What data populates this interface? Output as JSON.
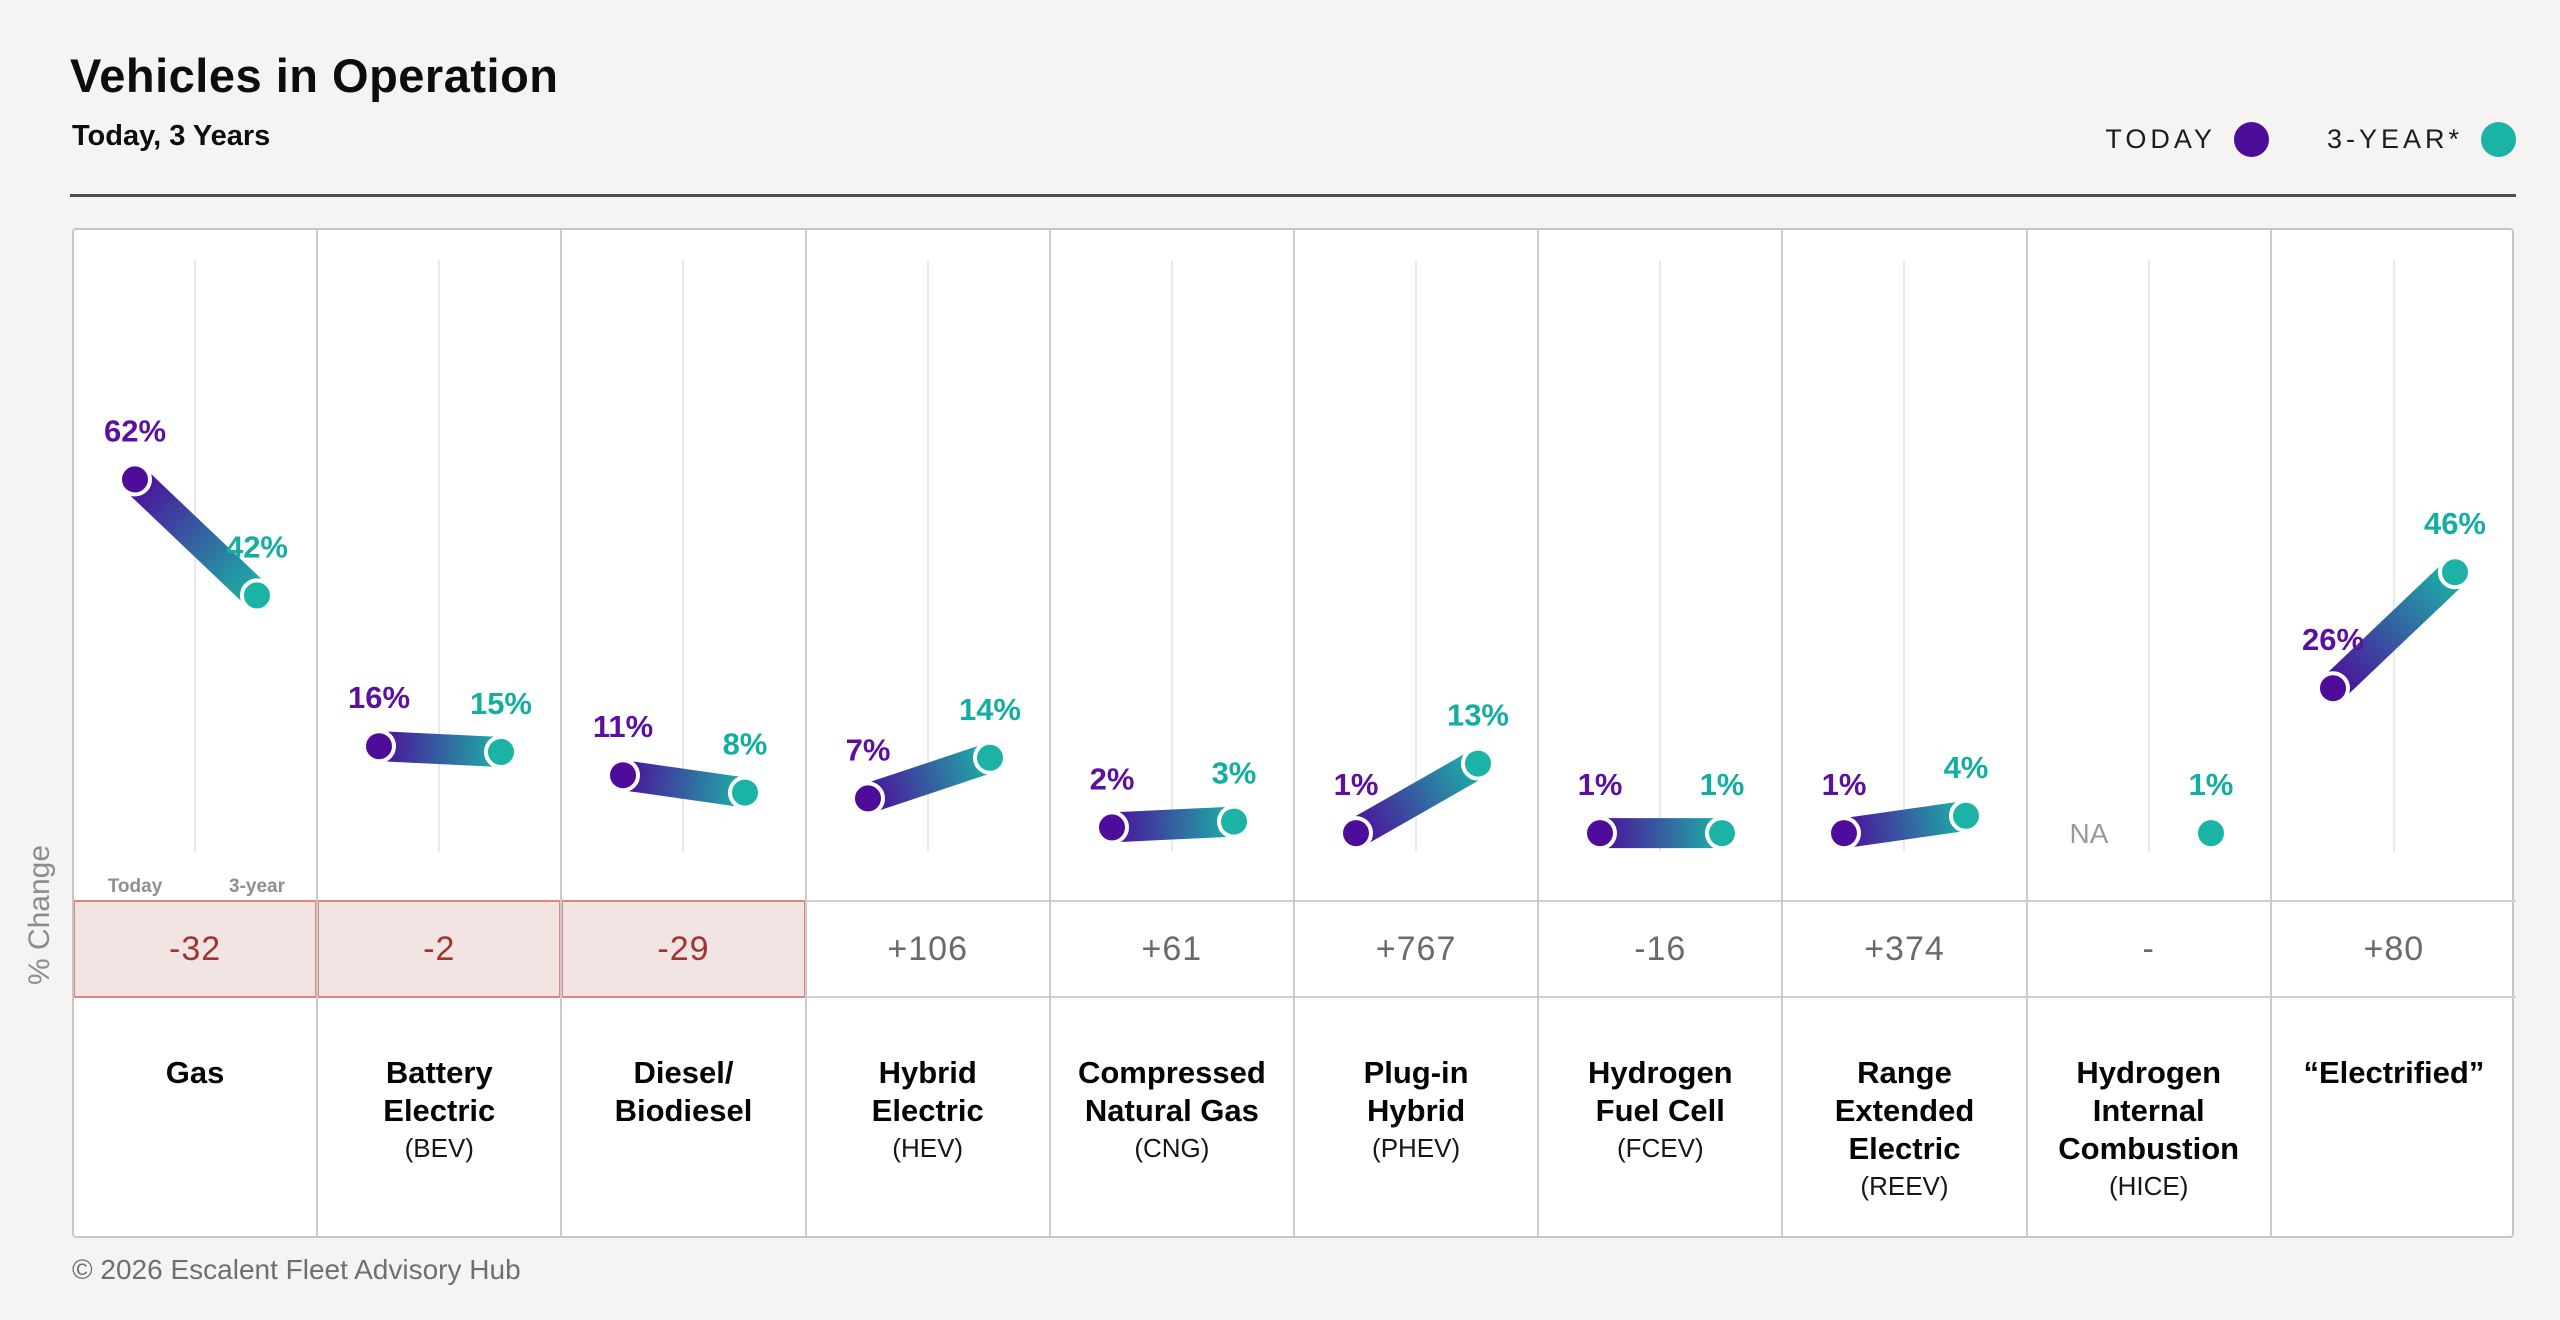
{
  "header": {
    "title": "Vehicles in Operation",
    "subtitle": "Today, 3 Years"
  },
  "legend": {
    "items": [
      {
        "label": "TODAY",
        "icon": "today-dot",
        "color": "#4E0C9B"
      },
      {
        "label": "3-YEAR*",
        "icon": "3year-dot",
        "color": "#1BB3A6"
      }
    ]
  },
  "chart_data": {
    "type": "slope",
    "title": "Vehicles in Operation",
    "subtitle": "Today, 3 Years",
    "y_axis_label": "% Change",
    "point_axis_labels": [
      "Today",
      "3-year"
    ],
    "series_names": [
      "TODAY",
      "3-YEAR*"
    ],
    "today_color": "#4E0C9B",
    "year3_color": "#1BB3A6",
    "today_text_color": "#5C10A1",
    "year3_text_color": "#13AEA1",
    "na_color": "#999999",
    "change_text_color": "#6a6a6a",
    "highlight": {
      "bg": "#f2e4e3",
      "border": "#e0857d",
      "text": "#a0342f"
    },
    "categories": [
      {
        "name_lines": [
          "Gas"
        ],
        "abbr": "",
        "today_pct": 62,
        "today_label": "62%",
        "year3_pct": 42,
        "year3_label": "42%",
        "change": "-32",
        "negative_highlight": true
      },
      {
        "name_lines": [
          "Battery",
          "Electric"
        ],
        "abbr": "(BEV)",
        "today_pct": 16,
        "today_label": "16%",
        "year3_pct": 15,
        "year3_label": "15%",
        "change": "-2",
        "negative_highlight": true
      },
      {
        "name_lines": [
          "Diesel/",
          "Biodiesel"
        ],
        "abbr": "",
        "today_pct": 11,
        "today_label": "11%",
        "year3_pct": 8,
        "year3_label": "8%",
        "change": "-29",
        "negative_highlight": true
      },
      {
        "name_lines": [
          "Hybrid",
          "Electric"
        ],
        "abbr": "(HEV)",
        "today_pct": 7,
        "today_label": "7%",
        "year3_pct": 14,
        "year3_label": "14%",
        "change": "+106",
        "negative_highlight": false
      },
      {
        "name_lines": [
          "Compressed",
          "Natural Gas"
        ],
        "abbr": "(CNG)",
        "today_pct": 2,
        "today_label": "2%",
        "year3_pct": 3,
        "year3_label": "3%",
        "change": "+61",
        "negative_highlight": false
      },
      {
        "name_lines": [
          "Plug-in",
          "Hybrid"
        ],
        "abbr": "(PHEV)",
        "today_pct": 1,
        "today_label": "1%",
        "year3_pct": 13,
        "year3_label": "13%",
        "change": "+767",
        "negative_highlight": false
      },
      {
        "name_lines": [
          "Hydrogen",
          "Fuel Cell"
        ],
        "abbr": "(FCEV)",
        "today_pct": 1,
        "today_label": "1%",
        "year3_pct": 1,
        "year3_label": "1%",
        "change": "-16",
        "negative_highlight": false
      },
      {
        "name_lines": [
          "Range",
          "Extended",
          "Electric"
        ],
        "abbr": "(REEV)",
        "today_pct": 1,
        "today_label": "1%",
        "year3_pct": 4,
        "year3_label": "4%",
        "change": "+374",
        "negative_highlight": false
      },
      {
        "name_lines": [
          "Hydrogen",
          "Internal",
          "Combustion"
        ],
        "abbr": "(HICE)",
        "today_pct": null,
        "today_label": "NA",
        "year3_pct": 1,
        "year3_label": "1%",
        "change": "-",
        "negative_highlight": false
      },
      {
        "name_lines": [
          "“Electrified”"
        ],
        "abbr": "",
        "today_pct": 26,
        "today_label": "26%",
        "year3_pct": 46,
        "year3_label": "46%",
        "change": "+80",
        "negative_highlight": false
      }
    ]
  },
  "footer": {
    "copyright": "© 2026 Escalent Fleet Advisory Hub"
  }
}
